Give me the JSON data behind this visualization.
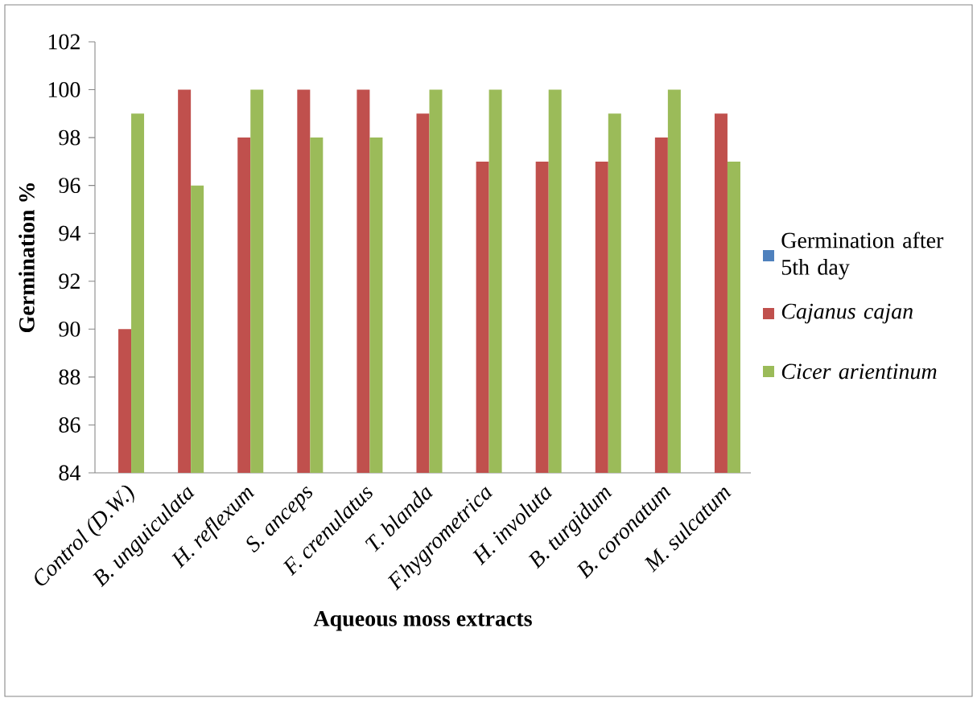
{
  "chart_data": {
    "type": "bar",
    "xlabel": "Aqueous moss extracts",
    "ylabel": "Germination %",
    "categories": [
      "Control (D.W.)",
      "B. unguiculata",
      "H. reflexum",
      "S. anceps",
      "F. crenulatus",
      "T. blanda",
      "F.hygrometrica",
      "H. involuta",
      "B. turgidum",
      "B. coronatum",
      "M. sulcatum"
    ],
    "series": [
      {
        "name": "Germination after 5th day",
        "color": "#4f81bd",
        "values": [
          null,
          null,
          null,
          null,
          null,
          null,
          null,
          null,
          null,
          null,
          null
        ]
      },
      {
        "name": "*Cajanus cajan*",
        "color": "#c0504d",
        "values": [
          90,
          100,
          98,
          100,
          100,
          99,
          97,
          97,
          97,
          98,
          99
        ]
      },
      {
        "name": "*Cicer arientinum*",
        "color": "#9bbb59",
        "values": [
          99,
          96,
          100,
          98,
          98,
          100,
          100,
          100,
          99,
          100,
          97
        ]
      }
    ],
    "ylim": [
      84,
      102
    ],
    "yticks": [
      84,
      86,
      88,
      90,
      92,
      94,
      96,
      98,
      100,
      102
    ],
    "grid": false,
    "legend": "right"
  }
}
